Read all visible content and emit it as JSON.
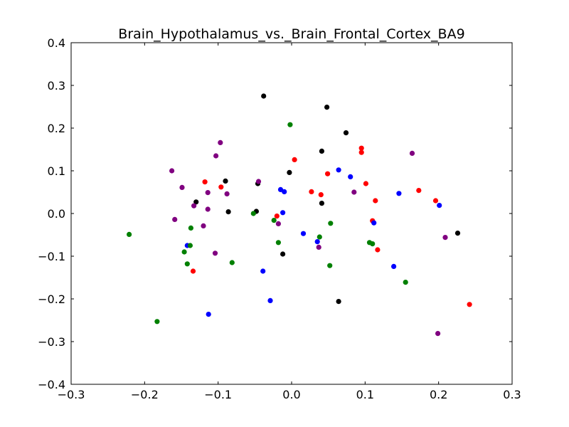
{
  "chart_data": {
    "type": "scatter",
    "title": "Brain_Hypothalamus_vs._Brain_Frontal_Cortex_BA9",
    "xlabel": "",
    "ylabel": "",
    "xlim": [
      -0.3,
      0.3
    ],
    "ylim": [
      -0.4,
      0.4
    ],
    "x_ticks": [
      -0.3,
      -0.2,
      -0.1,
      0.0,
      0.1,
      0.2,
      0.3
    ],
    "y_ticks": [
      -0.4,
      -0.3,
      -0.2,
      -0.1,
      0.0,
      0.1,
      0.2,
      0.3,
      0.4
    ],
    "x_tick_labels": [
      "−0.3",
      "−0.2",
      "−0.1",
      "0.0",
      "0.1",
      "0.2",
      "0.3"
    ],
    "y_tick_labels": [
      "−0.4",
      "−0.3",
      "−0.2",
      "−0.1",
      "0.0",
      "0.1",
      "0.2",
      "0.3",
      "0.4"
    ],
    "grid": false,
    "legend": "none",
    "series": [
      {
        "color": "#000000",
        "points": [
          [
            -0.038,
            0.275
          ],
          [
            0.048,
            0.249
          ],
          [
            0.074,
            0.189
          ],
          [
            0.041,
            0.146
          ],
          [
            -0.09,
            0.076
          ],
          [
            -0.046,
            0.07
          ],
          [
            -0.13,
            0.027
          ],
          [
            -0.003,
            0.096
          ],
          [
            0.041,
            0.024
          ],
          [
            -0.048,
            0.005
          ],
          [
            -0.086,
            0.004
          ],
          [
            -0.012,
            -0.095
          ],
          [
            0.064,
            -0.206
          ],
          [
            0.226,
            -0.046
          ]
        ]
      },
      {
        "color": "#ff0000",
        "points": [
          [
            0.004,
            0.126
          ],
          [
            0.095,
            0.153
          ],
          [
            0.095,
            0.143
          ],
          [
            -0.118,
            0.074
          ],
          [
            -0.096,
            0.062
          ],
          [
            0.049,
            0.093
          ],
          [
            0.101,
            0.07
          ],
          [
            0.027,
            0.051
          ],
          [
            0.04,
            0.044
          ],
          [
            0.173,
            0.054
          ],
          [
            0.196,
            0.03
          ],
          [
            0.114,
            0.03
          ],
          [
            -0.02,
            -0.006
          ],
          [
            0.11,
            -0.017
          ],
          [
            0.117,
            -0.085
          ],
          [
            -0.134,
            -0.135
          ],
          [
            0.242,
            -0.213
          ]
        ]
      },
      {
        "color": "#0000ff",
        "points": [
          [
            0.064,
            0.102
          ],
          [
            0.08,
            0.086
          ],
          [
            -0.015,
            0.056
          ],
          [
            -0.01,
            0.051
          ],
          [
            0.146,
            0.047
          ],
          [
            0.201,
            0.019
          ],
          [
            -0.012,
            0.002
          ],
          [
            0.016,
            -0.047
          ],
          [
            0.035,
            -0.066
          ],
          [
            0.112,
            -0.022
          ],
          [
            -0.142,
            -0.075
          ],
          [
            0.139,
            -0.124
          ],
          [
            -0.039,
            -0.135
          ],
          [
            -0.029,
            -0.204
          ],
          [
            -0.113,
            -0.236
          ]
        ]
      },
      {
        "color": "#008000",
        "points": [
          [
            -0.002,
            0.208
          ],
          [
            -0.052,
            0.0
          ],
          [
            -0.024,
            -0.016
          ],
          [
            0.053,
            -0.023
          ],
          [
            -0.018,
            -0.068
          ],
          [
            0.038,
            -0.055
          ],
          [
            -0.221,
            -0.049
          ],
          [
            -0.137,
            -0.034
          ],
          [
            -0.138,
            -0.075
          ],
          [
            -0.146,
            -0.09
          ],
          [
            -0.142,
            -0.118
          ],
          [
            -0.081,
            -0.115
          ],
          [
            0.106,
            -0.068
          ],
          [
            0.11,
            -0.071
          ],
          [
            0.052,
            -0.122
          ],
          [
            0.155,
            -0.161
          ],
          [
            -0.183,
            -0.253
          ]
        ]
      },
      {
        "color": "#800080",
        "points": [
          [
            -0.097,
            0.166
          ],
          [
            -0.103,
            0.135
          ],
          [
            -0.163,
            0.1
          ],
          [
            -0.149,
            0.061
          ],
          [
            -0.045,
            0.075
          ],
          [
            -0.114,
            0.049
          ],
          [
            -0.088,
            0.046
          ],
          [
            0.085,
            0.05
          ],
          [
            0.164,
            0.141
          ],
          [
            -0.133,
            0.018
          ],
          [
            -0.114,
            0.01
          ],
          [
            -0.159,
            -0.014
          ],
          [
            -0.018,
            -0.024
          ],
          [
            -0.12,
            -0.029
          ],
          [
            0.037,
            -0.079
          ],
          [
            -0.104,
            -0.093
          ],
          [
            0.209,
            -0.056
          ],
          [
            0.199,
            -0.281
          ]
        ]
      }
    ]
  }
}
